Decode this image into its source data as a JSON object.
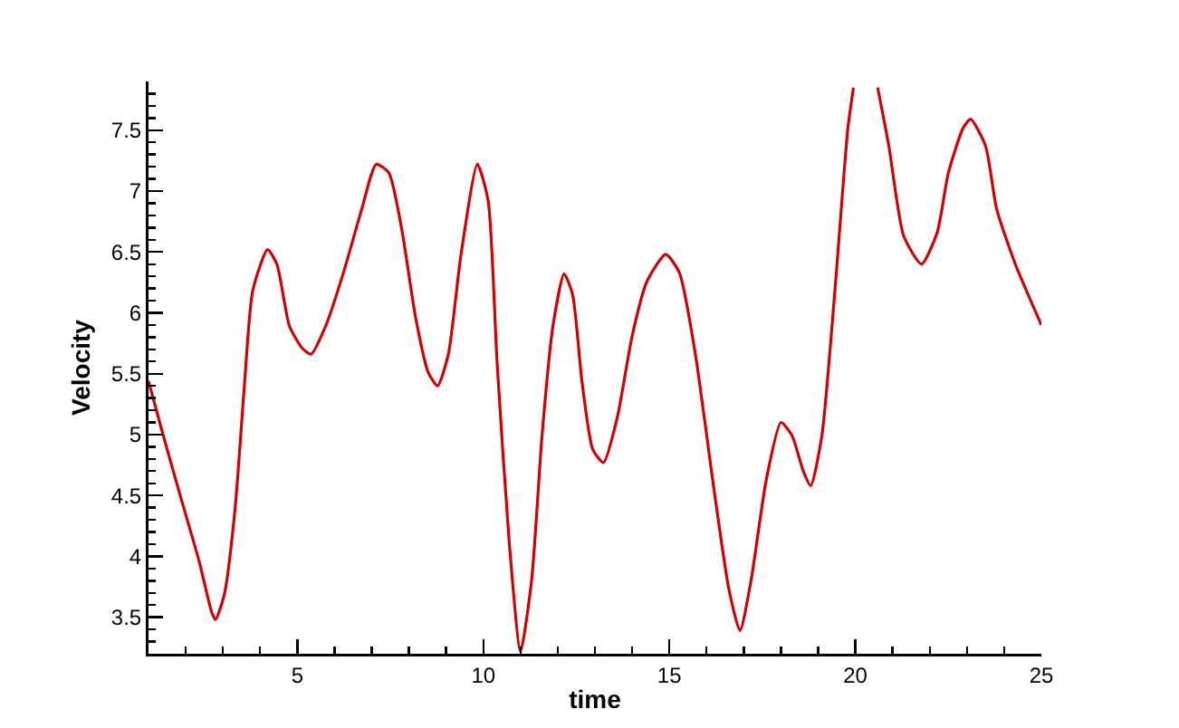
{
  "chart_data": {
    "type": "line",
    "xlabel": "time",
    "ylabel": "Velocity",
    "xlim": [
      1,
      25
    ],
    "xticks": [
      5,
      10,
      15,
      20,
      25
    ],
    "ylim": [
      3.2,
      7.9
    ],
    "yticks": [
      3.5,
      4,
      4.5,
      5,
      5.5,
      6,
      6.5,
      7,
      7.5
    ],
    "grid": false,
    "marker": "none",
    "line_style": "solid",
    "series": [
      {
        "color": "#d40000",
        "x": [
          1,
          1.39,
          1.87,
          2.36,
          2.7,
          2.8,
          3.04,
          3.33,
          3.57,
          3.8,
          4.2,
          4.45,
          4.79,
          5.13,
          5.37,
          5.76,
          6.24,
          6.73,
          7.12,
          7.46,
          7.8,
          8.18,
          8.52,
          8.77,
          9.06,
          9.4,
          9.84,
          10.13,
          10.37,
          10.7,
          11,
          11.3,
          11.58,
          11.87,
          12.17,
          12.4,
          12.65,
          12.94,
          13.23,
          13.6,
          14,
          14.4,
          14.9,
          15.27,
          15.7,
          16.2,
          16.6,
          16.9,
          17.2,
          17.6,
          18,
          18.3,
          18.6,
          18.8,
          19.1,
          19.45,
          19.8,
          19.95,
          20.3,
          20.6,
          20.9,
          21.3,
          21.78,
          22.2,
          22.5,
          22.9,
          23.1,
          23.5,
          23.8,
          24.3,
          25
        ],
        "values": [
          5.44,
          5.0,
          4.48,
          3.96,
          3.54,
          3.48,
          3.69,
          4.4,
          5.37,
          6.18,
          6.52,
          6.4,
          5.89,
          5.71,
          5.66,
          5.89,
          6.33,
          6.85,
          7.22,
          7.15,
          6.7,
          5.96,
          5.51,
          5.4,
          5.66,
          6.48,
          7.22,
          6.92,
          5.59,
          4.1,
          3.22,
          3.81,
          5.0,
          5.89,
          6.32,
          6.15,
          5.44,
          4.88,
          4.77,
          5.14,
          5.81,
          6.26,
          6.48,
          6.33,
          5.66,
          4.55,
          3.73,
          3.39,
          3.81,
          4.62,
          5.1,
          4.99,
          4.7,
          4.58,
          4.99,
          6.18,
          7.52,
          7.85,
          null,
          7.85,
          7.37,
          6.63,
          6.4,
          6.66,
          7.15,
          7.52,
          7.59,
          7.37,
          6.85,
          6.4,
          5.9
        ]
      }
    ]
  }
}
